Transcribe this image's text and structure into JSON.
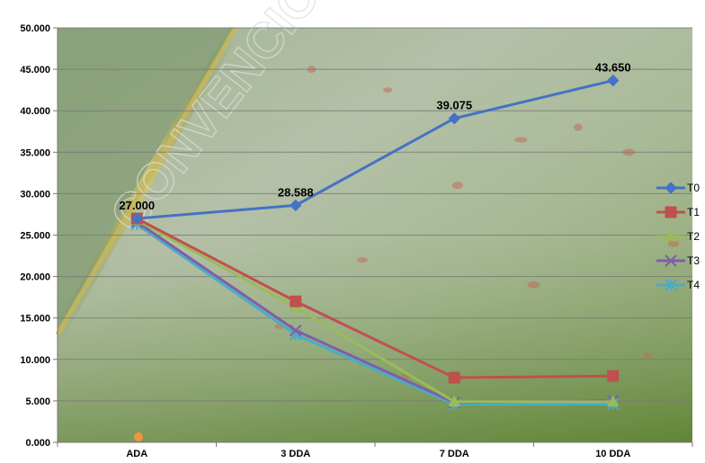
{
  "chart_data": {
    "type": "line",
    "title": "",
    "xlabel": "",
    "ylabel": "",
    "categories": [
      "ADA",
      "3 DDA",
      "7 DDA",
      "10 DDA"
    ],
    "ylim": [
      0,
      50
    ],
    "yticks": [
      "0.000",
      "5.000",
      "10.000",
      "15.000",
      "20.000",
      "25.000",
      "30.000",
      "35.000",
      "40.000",
      "45.000",
      "50.000"
    ],
    "grid": true,
    "legend_position": "right",
    "series": [
      {
        "name": "T0",
        "color": "#4472c4",
        "marker": "diamond",
        "values": [
          27.0,
          28.588,
          39.075,
          43.65
        ],
        "labels": [
          "27.000",
          "28.588",
          "39.075",
          "43.650"
        ]
      },
      {
        "name": "T1",
        "color": "#c0504d",
        "marker": "square",
        "values": [
          27.0,
          17.0,
          7.8,
          8.0
        ]
      },
      {
        "name": "T2",
        "color": "#9bbb59",
        "marker": "triangle",
        "values": [
          26.8,
          16.3,
          4.9,
          4.9
        ]
      },
      {
        "name": "T3",
        "color": "#7f5fa8",
        "marker": "x",
        "values": [
          26.6,
          13.5,
          4.8,
          5.0
        ]
      },
      {
        "name": "T4",
        "color": "#4bacc6",
        "marker": "star",
        "values": [
          26.3,
          13.0,
          4.6,
          4.6
        ]
      }
    ],
    "watermark": "CONVENCION NA"
  }
}
